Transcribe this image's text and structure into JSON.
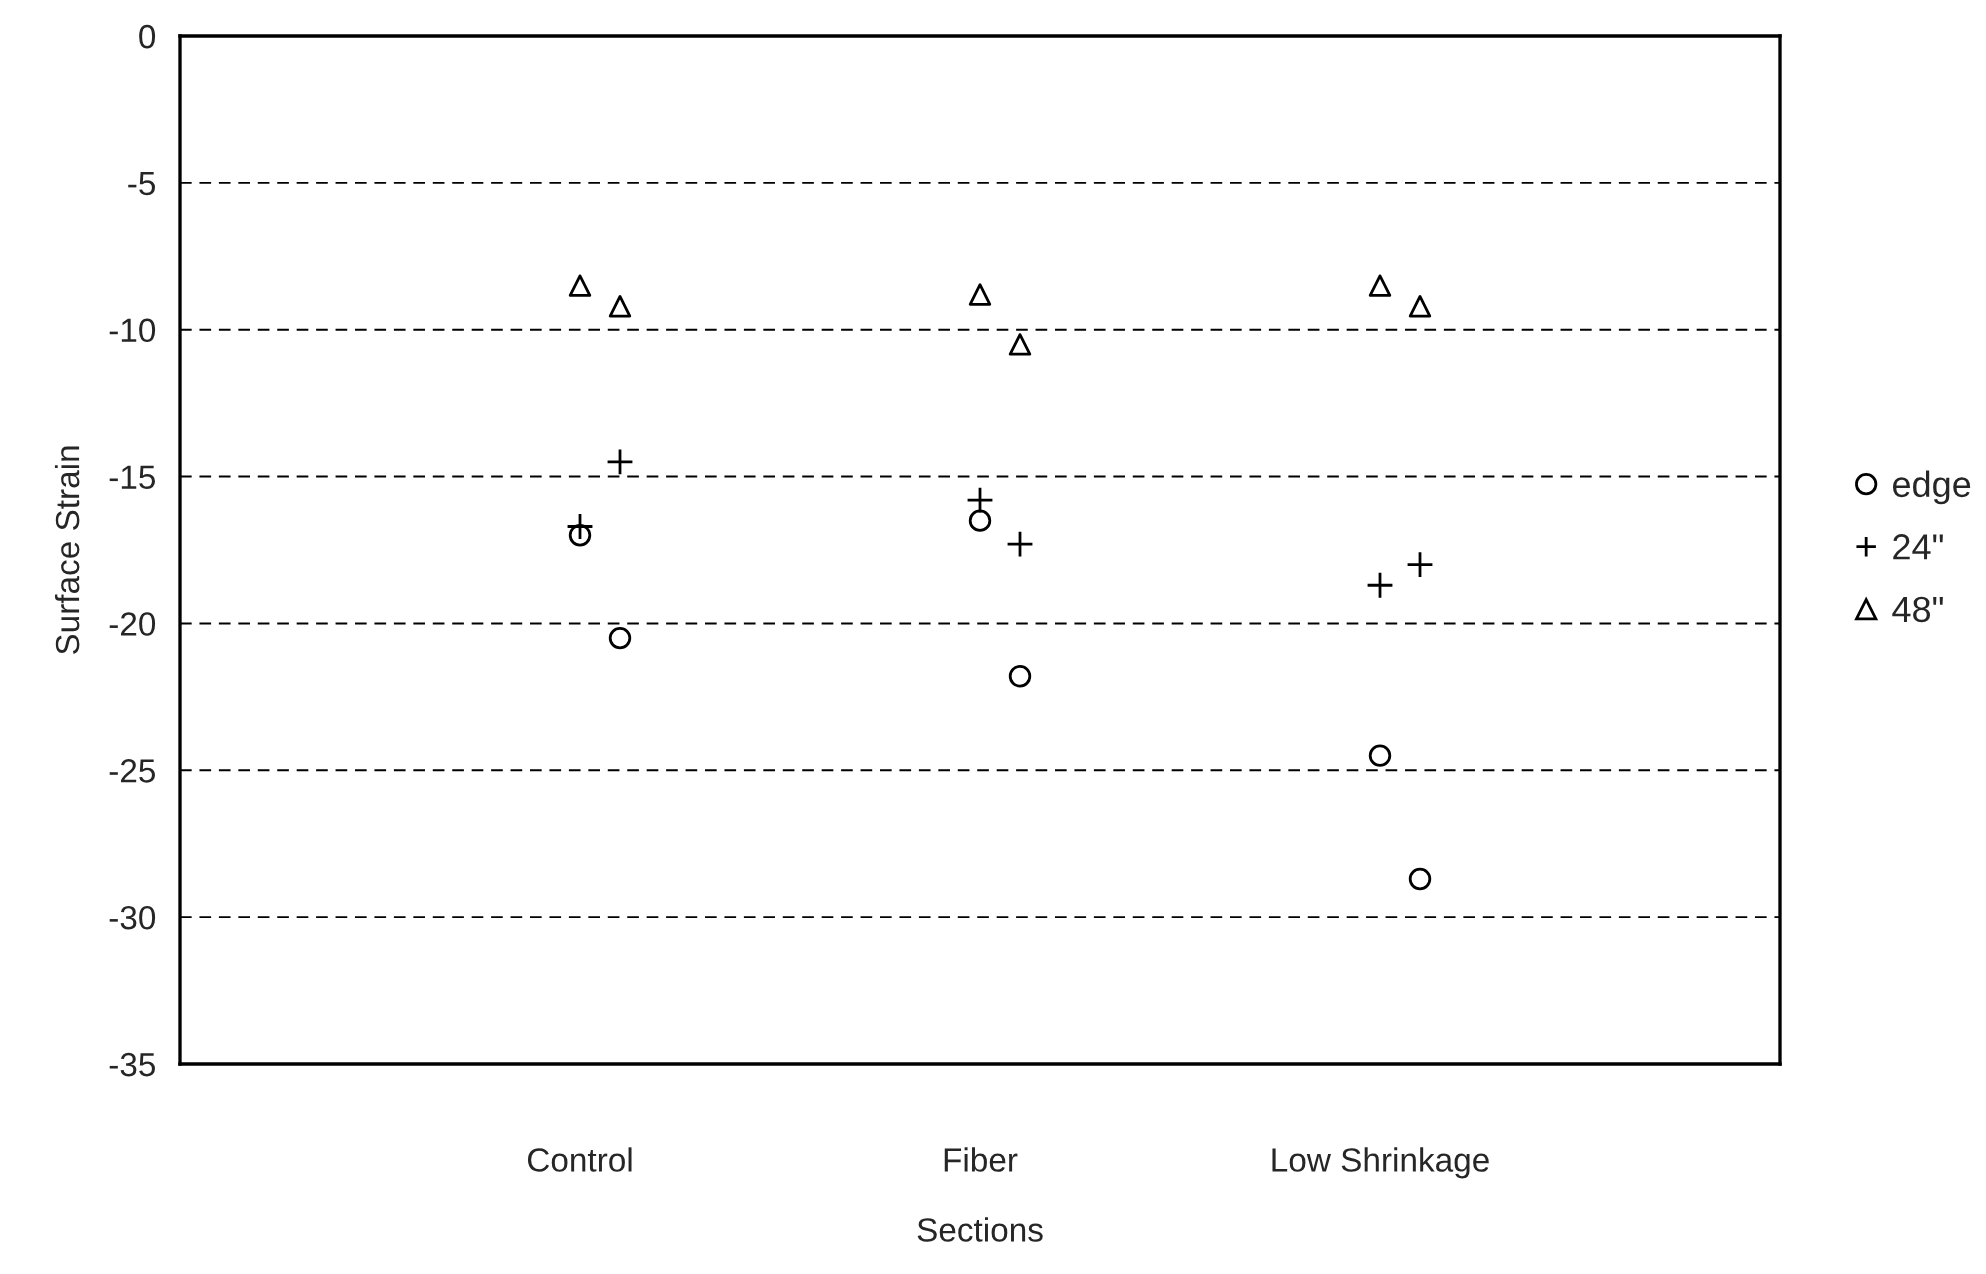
{
  "chart_data": {
    "type": "scatter",
    "xlabel": "Sections",
    "ylabel": "Surface Strain",
    "categories": [
      "Control",
      "Fiber",
      "Low Shrinkage"
    ],
    "ylim": [
      -35,
      0
    ],
    "yticks": [
      -35,
      -30,
      -25,
      -20,
      -15,
      -10,
      -5,
      0
    ],
    "grid": "y",
    "legend": "right",
    "series": [
      {
        "name": "edge",
        "color": "#000000",
        "marker": "circle",
        "x": [
          "Control",
          "Control",
          "Fiber",
          "Fiber",
          "Low Shrinkage",
          "Low Shrinkage"
        ],
        "values": [
          -17.0,
          -20.5,
          -16.5,
          -21.8,
          -24.5,
          -28.7
        ]
      },
      {
        "name": "24\"",
        "color": "#000000",
        "marker": "cross",
        "x": [
          "Control",
          "Control",
          "Fiber",
          "Fiber",
          "Low Shrinkage",
          "Low Shrinkage"
        ],
        "values": [
          -16.7,
          -14.5,
          -15.8,
          -17.3,
          -18.7,
          -18.0
        ]
      },
      {
        "name": "48\"",
        "color": "#000000",
        "marker": "triangle",
        "x": [
          "Control",
          "Control",
          "Fiber",
          "Fiber",
          "Low Shrinkage",
          "Low Shrinkage"
        ],
        "values": [
          -8.5,
          -9.2,
          -8.8,
          -10.5,
          -8.5,
          -9.2
        ]
      }
    ]
  }
}
